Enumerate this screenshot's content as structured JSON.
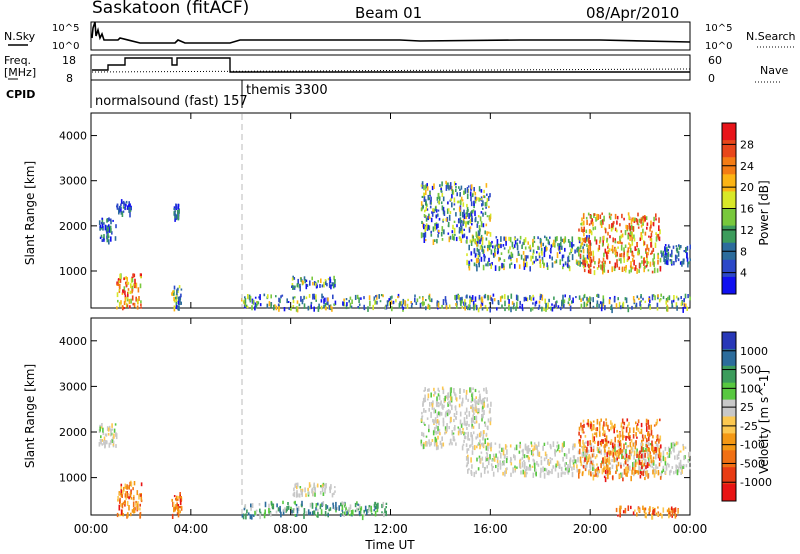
{
  "header": {
    "station": "Saskatoon (fitACF)",
    "beam": "Beam 01",
    "date": "08/Apr/2010"
  },
  "top_panels": {
    "nsky_label": "N.Sky",
    "nsearch_label": "N.Search",
    "freq_label_1": "Freq.",
    "freq_label_2": "[MHz]",
    "nave_label": "Nave",
    "cpid_label": "CPID",
    "nsky_ticks": [
      "10^5",
      "10^0"
    ],
    "nsearch_ticks": [
      "10^5",
      "10^0"
    ],
    "freq_ticks": [
      "18",
      "8"
    ],
    "nave_ticks": [
      "60",
      "0"
    ],
    "cpid_segments": [
      {
        "label": "normalsound (fast) 157",
        "start_hour": 0
      },
      {
        "label": "themis 3300",
        "start_hour": 6.0
      }
    ]
  },
  "x_axis": {
    "label": "Time UT",
    "ticks": [
      "00:00",
      "04:00",
      "08:00",
      "12:00",
      "16:00",
      "20:00",
      "00:00"
    ]
  },
  "chart_data": [
    {
      "type": "heatmap",
      "title": "Power",
      "ylabel": "Slant Range [km]",
      "xlabel": "",
      "xlim": [
        0,
        24
      ],
      "ylim": [
        180,
        4500
      ],
      "yticks": [
        1000,
        2000,
        3000,
        4000
      ],
      "colorbar_label": "Power [dB]",
      "colorbar_ticks": [
        "28",
        "24",
        "20",
        "16",
        "12",
        "8",
        "4"
      ],
      "colorbar_colors": [
        "#e8141a",
        "#e8461a",
        "#f47c14",
        "#fcb414",
        "#d8e828",
        "#78c83c",
        "#3c9c5c",
        "#2c6c9c",
        "#2c48c8",
        "#1010f0"
      ],
      "regions": [
        {
          "x": [
            0.3,
            1.0
          ],
          "y": [
            1700,
            2200
          ],
          "level": "low"
        },
        {
          "x": [
            1.0,
            1.6
          ],
          "y": [
            2300,
            2600
          ],
          "level": "low"
        },
        {
          "x": [
            1.0,
            2.0
          ],
          "y": [
            200,
            950
          ],
          "level": "high"
        },
        {
          "x": [
            3.2,
            3.6
          ],
          "y": [
            200,
            700
          ],
          "level": "mid"
        },
        {
          "x": [
            3.3,
            3.5
          ],
          "y": [
            2200,
            2500
          ],
          "level": "low"
        },
        {
          "x": [
            6.0,
            24.0
          ],
          "y": [
            190,
            500
          ],
          "level": "mid"
        },
        {
          "x": [
            8.0,
            9.8
          ],
          "y": [
            650,
            900
          ],
          "level": "mid"
        },
        {
          "x": [
            13.2,
            16.0
          ],
          "y": [
            1700,
            3000
          ],
          "level": "mid"
        },
        {
          "x": [
            15.0,
            20.0
          ],
          "y": [
            1100,
            1800
          ],
          "level": "mid"
        },
        {
          "x": [
            19.5,
            22.8
          ],
          "y": [
            1000,
            2300
          ],
          "level": "high"
        },
        {
          "x": [
            22.8,
            24.0
          ],
          "y": [
            1200,
            1600
          ],
          "level": "low"
        }
      ]
    },
    {
      "type": "heatmap",
      "title": "Velocity",
      "ylabel": "Slant Range [km]",
      "xlabel": "Time UT",
      "xlim": [
        0,
        24
      ],
      "ylim": [
        180,
        4500
      ],
      "yticks": [
        1000,
        2000,
        3000,
        4000
      ],
      "colorbar_label": "Velocity [m s^-1]",
      "colorbar_ticks": [
        "1000",
        "500",
        "100",
        "25",
        "-25",
        "-100",
        "-500",
        "-1000"
      ],
      "colorbar_colors": [
        "#2838b8",
        "#2c6c9c",
        "#3c9c5c",
        "#58c840",
        "#c8c8c8",
        "#fcc850",
        "#f49814",
        "#f07014",
        "#e83c14",
        "#e81414"
      ],
      "regions": [
        {
          "x": [
            0.3,
            1.0
          ],
          "y": [
            1700,
            2200
          ],
          "level": "neutral"
        },
        {
          "x": [
            1.0,
            2.0
          ],
          "y": [
            200,
            950
          ],
          "level": "away"
        },
        {
          "x": [
            3.2,
            3.6
          ],
          "y": [
            200,
            700
          ],
          "level": "away"
        },
        {
          "x": [
            6.0,
            12.0
          ],
          "y": [
            190,
            500
          ],
          "level": "toward"
        },
        {
          "x": [
            8.0,
            9.8
          ],
          "y": [
            650,
            900
          ],
          "level": "neutral"
        },
        {
          "x": [
            13.2,
            16.0
          ],
          "y": [
            1700,
            3000
          ],
          "level": "neutral"
        },
        {
          "x": [
            15.0,
            24.0
          ],
          "y": [
            1100,
            1800
          ],
          "level": "neutral"
        },
        {
          "x": [
            19.5,
            22.8
          ],
          "y": [
            1000,
            2300
          ],
          "level": "away"
        },
        {
          "x": [
            21.0,
            23.5
          ],
          "y": [
            190,
            400
          ],
          "level": "away"
        }
      ]
    }
  ]
}
